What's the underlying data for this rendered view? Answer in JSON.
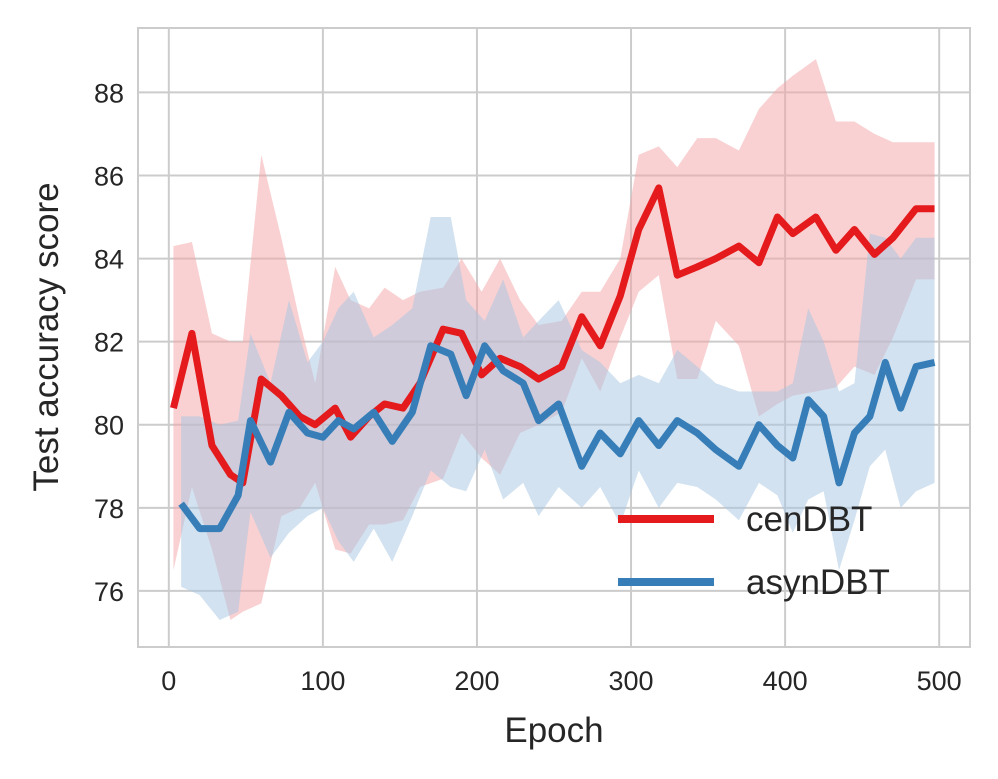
{
  "chart_data": {
    "type": "line",
    "title": "",
    "xlabel": "Epoch",
    "ylabel": "Test accuracy score",
    "xlim": [
      -20,
      520
    ],
    "ylim": [
      74.65,
      89.55
    ],
    "xticks": [
      0,
      100,
      200,
      300,
      400,
      500
    ],
    "yticks": [
      76,
      78,
      80,
      82,
      84,
      86,
      88
    ],
    "grid": true,
    "legend_position": "lower-right",
    "series": [
      {
        "name": "cenDBT",
        "color": "#e41a1c",
        "band_color": "#f4a3a5",
        "x": [
          3,
          15,
          28,
          40,
          48,
          60,
          73,
          85,
          95,
          108,
          118,
          130,
          140,
          152,
          163,
          178,
          190,
          203,
          215,
          228,
          240,
          255,
          268,
          280,
          293,
          305,
          318,
          330,
          343,
          355,
          370,
          383,
          395,
          405,
          420,
          433,
          445,
          458,
          470,
          485,
          497
        ],
        "y": [
          80.4,
          82.2,
          79.5,
          78.8,
          78.6,
          81.1,
          80.7,
          80.2,
          80.0,
          80.4,
          79.7,
          80.2,
          80.5,
          80.4,
          81.0,
          82.3,
          82.2,
          81.2,
          81.6,
          81.4,
          81.1,
          81.4,
          82.6,
          81.9,
          83.1,
          84.7,
          85.7,
          83.6,
          83.8,
          84.0,
          84.3,
          83.9,
          85.0,
          84.6,
          85.0,
          84.2,
          84.7,
          84.1,
          84.5,
          85.2,
          85.2
        ],
        "upper": [
          84.3,
          84.4,
          82.2,
          82.0,
          82.0,
          86.5,
          84.5,
          82.5,
          81.0,
          83.8,
          83.0,
          82.8,
          83.3,
          83.0,
          83.2,
          83.3,
          84.0,
          83.2,
          84.0,
          83.0,
          82.4,
          82.5,
          83.2,
          83.2,
          84.0,
          86.5,
          86.7,
          86.2,
          86.9,
          86.9,
          86.6,
          87.6,
          88.1,
          88.4,
          88.8,
          87.3,
          87.3,
          87.0,
          86.8,
          86.8,
          86.8
        ],
        "lower": [
          76.5,
          78.5,
          77.0,
          75.3,
          75.5,
          75.7,
          77.8,
          78.0,
          78.6,
          77.0,
          76.9,
          77.6,
          77.6,
          77.7,
          78.5,
          78.7,
          79.8,
          79.2,
          78.8,
          79.8,
          80.0,
          80.3,
          81.6,
          80.8,
          82.1,
          83.2,
          83.6,
          81.1,
          81.1,
          82.5,
          81.9,
          80.2,
          80.5,
          80.7,
          80.8,
          80.9,
          81.4,
          81.2,
          82.1,
          83.5,
          83.5
        ]
      },
      {
        "name": "asynDBT",
        "color": "#377eb8",
        "band_color": "#a6c5e2",
        "x": [
          8,
          20,
          33,
          45,
          53,
          66,
          78,
          90,
          100,
          110,
          120,
          133,
          145,
          158,
          170,
          183,
          193,
          205,
          217,
          230,
          240,
          253,
          268,
          280,
          293,
          305,
          318,
          330,
          343,
          355,
          370,
          383,
          395,
          405,
          415,
          425,
          435,
          445,
          455,
          465,
          475,
          485,
          497
        ],
        "y": [
          78.1,
          77.5,
          77.5,
          78.3,
          80.1,
          79.1,
          80.3,
          79.8,
          79.7,
          80.1,
          79.9,
          80.3,
          79.6,
          80.3,
          81.9,
          81.7,
          80.7,
          81.9,
          81.3,
          81.0,
          80.1,
          80.5,
          79.0,
          79.8,
          79.3,
          80.1,
          79.5,
          80.1,
          79.8,
          79.4,
          79.0,
          80.0,
          79.5,
          79.2,
          80.6,
          80.2,
          78.6,
          79.8,
          80.2,
          81.5,
          80.4,
          81.4,
          81.5
        ],
        "upper": [
          80.2,
          80.2,
          80.0,
          80.1,
          82.2,
          81.0,
          83.0,
          81.5,
          82.0,
          82.8,
          83.2,
          82.1,
          82.4,
          82.8,
          85.0,
          85.0,
          83.0,
          82.5,
          83.5,
          82.1,
          82.5,
          83.0,
          81.8,
          81.5,
          81.0,
          81.2,
          81.0,
          81.8,
          81.4,
          81.0,
          80.8,
          80.8,
          80.8,
          81.0,
          82.8,
          82.0,
          80.8,
          81.0,
          84.6,
          84.5,
          84.0,
          84.5,
          84.5
        ],
        "lower": [
          76.1,
          75.9,
          75.3,
          75.5,
          77.9,
          76.8,
          77.4,
          77.8,
          78.0,
          77.2,
          76.7,
          77.5,
          76.7,
          77.8,
          78.9,
          78.5,
          78.4,
          79.4,
          78.2,
          78.6,
          77.8,
          78.5,
          78.0,
          78.5,
          77.6,
          78.9,
          78.0,
          78.6,
          78.5,
          78.2,
          77.7,
          78.6,
          78.3,
          77.4,
          78.2,
          78.4,
          76.5,
          77.7,
          79.0,
          79.4,
          78.0,
          78.4,
          78.6
        ]
      }
    ]
  }
}
